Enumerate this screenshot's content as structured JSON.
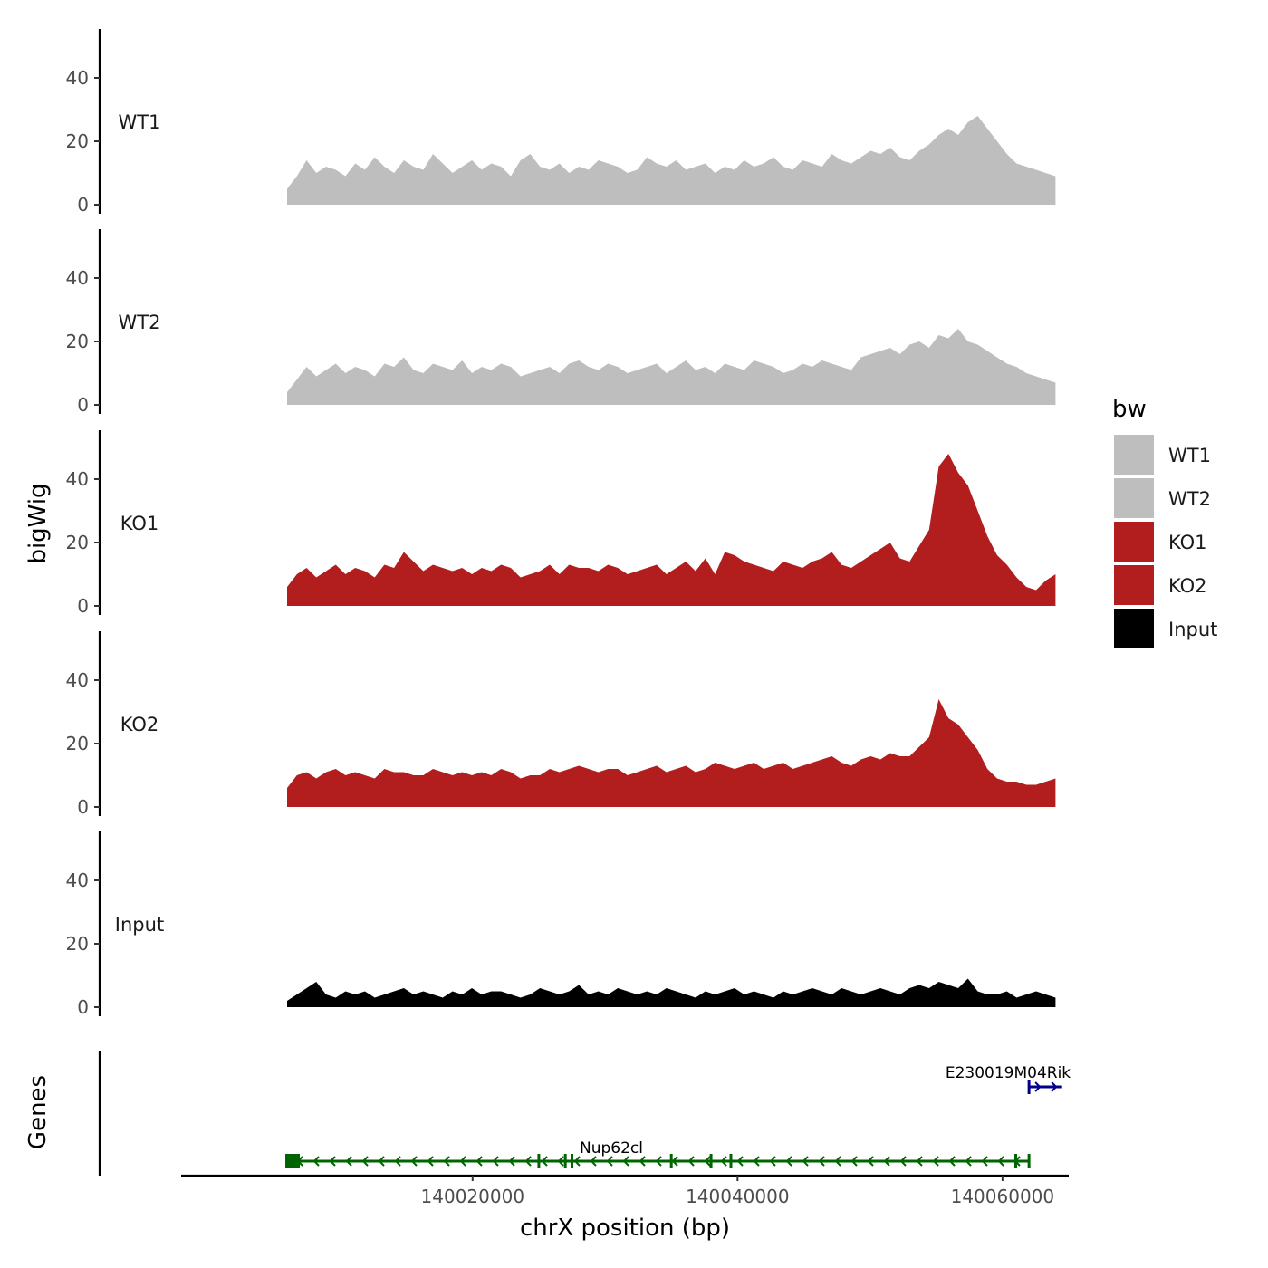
{
  "chart_data": {
    "type": "area",
    "description_free": true,
    "y_axis_title": "bigWig",
    "x_axis_title": "chrX position (bp)",
    "x_range": [
      139998000,
      140065000
    ],
    "x_ticks": [
      {
        "value": 140020000,
        "label": "140020000"
      },
      {
        "value": 140040000,
        "label": "140040000"
      },
      {
        "value": 140060000,
        "label": "140060000"
      }
    ],
    "y_range": [
      0,
      55
    ],
    "y_ticks": [
      {
        "value": 0,
        "label": "0"
      },
      {
        "value": 20,
        "label": "20"
      },
      {
        "value": 40,
        "label": "40"
      }
    ],
    "track_range": [
      140006000,
      140064000
    ],
    "series": [
      {
        "name": "WT1",
        "color": "#bebebe",
        "values": [
          5,
          9,
          14,
          10,
          12,
          11,
          9,
          13,
          11,
          15,
          12,
          10,
          14,
          12,
          11,
          16,
          13,
          10,
          12,
          14,
          11,
          13,
          12,
          9,
          14,
          16,
          12,
          11,
          13,
          10,
          12,
          11,
          14,
          13,
          12,
          10,
          11,
          15,
          13,
          12,
          14,
          11,
          12,
          13,
          10,
          12,
          11,
          14,
          12,
          13,
          15,
          12,
          11,
          14,
          13,
          12,
          16,
          14,
          13,
          15,
          17,
          16,
          18,
          15,
          14,
          17,
          19,
          22,
          24,
          22,
          26,
          28,
          24,
          20,
          16,
          13,
          12,
          11,
          10,
          9
        ]
      },
      {
        "name": "WT2",
        "color": "#bebebe",
        "values": [
          4,
          8,
          12,
          9,
          11,
          13,
          10,
          12,
          11,
          9,
          13,
          12,
          15,
          11,
          10,
          13,
          12,
          11,
          14,
          10,
          12,
          11,
          13,
          12,
          9,
          10,
          11,
          12,
          10,
          13,
          14,
          12,
          11,
          13,
          12,
          10,
          11,
          12,
          13,
          10,
          12,
          14,
          11,
          12,
          10,
          13,
          12,
          11,
          14,
          13,
          12,
          10,
          11,
          13,
          12,
          14,
          13,
          12,
          11,
          15,
          16,
          17,
          18,
          16,
          19,
          20,
          18,
          22,
          21,
          24,
          20,
          19,
          17,
          15,
          13,
          12,
          10,
          9,
          8,
          7
        ]
      },
      {
        "name": "KO1",
        "color": "#b21e1e",
        "values": [
          6,
          10,
          12,
          9,
          11,
          13,
          10,
          12,
          11,
          9,
          13,
          12,
          17,
          14,
          11,
          13,
          12,
          11,
          12,
          10,
          12,
          11,
          13,
          12,
          9,
          10,
          11,
          13,
          10,
          13,
          12,
          12,
          11,
          13,
          12,
          10,
          11,
          12,
          13,
          10,
          12,
          14,
          11,
          15,
          10,
          17,
          16,
          14,
          13,
          12,
          11,
          14,
          13,
          12,
          14,
          15,
          17,
          13,
          12,
          14,
          16,
          18,
          20,
          15,
          14,
          19,
          24,
          44,
          48,
          42,
          38,
          30,
          22,
          16,
          13,
          9,
          6,
          5,
          8,
          10
        ]
      },
      {
        "name": "KO2",
        "color": "#b21e1e",
        "values": [
          6,
          10,
          11,
          9,
          11,
          12,
          10,
          11,
          10,
          9,
          12,
          11,
          11,
          10,
          10,
          12,
          11,
          10,
          11,
          10,
          11,
          10,
          12,
          11,
          9,
          10,
          10,
          12,
          11,
          12,
          13,
          12,
          11,
          12,
          12,
          10,
          11,
          12,
          13,
          11,
          12,
          13,
          11,
          12,
          14,
          13,
          12,
          13,
          14,
          12,
          13,
          14,
          12,
          13,
          14,
          15,
          16,
          14,
          13,
          15,
          16,
          15,
          17,
          16,
          16,
          19,
          22,
          34,
          28,
          26,
          22,
          18,
          12,
          9,
          8,
          8,
          7,
          7,
          8,
          9
        ]
      },
      {
        "name": "Input",
        "color": "#000000",
        "values": [
          2,
          4,
          6,
          8,
          4,
          3,
          5,
          4,
          5,
          3,
          4,
          5,
          6,
          4,
          5,
          4,
          3,
          5,
          4,
          6,
          4,
          5,
          5,
          4,
          3,
          4,
          6,
          5,
          4,
          5,
          7,
          4,
          5,
          4,
          6,
          5,
          4,
          5,
          4,
          6,
          5,
          4,
          3,
          5,
          4,
          5,
          6,
          4,
          5,
          4,
          3,
          5,
          4,
          5,
          6,
          5,
          4,
          6,
          5,
          4,
          5,
          6,
          5,
          4,
          6,
          7,
          6,
          8,
          7,
          6,
          9,
          5,
          4,
          4,
          5,
          3,
          4,
          5,
          4,
          3
        ]
      }
    ],
    "legend": {
      "title": "bw",
      "position": "right",
      "entries": [
        {
          "label": "WT1",
          "color": "#bebebe"
        },
        {
          "label": "WT2",
          "color": "#bebebe"
        },
        {
          "label": "KO1",
          "color": "#b21e1e"
        },
        {
          "label": "KO2",
          "color": "#b21e1e"
        },
        {
          "label": "Input",
          "color": "#000000"
        }
      ]
    },
    "genes_track": {
      "title": "Genes",
      "genes": [
        {
          "name": "Nup62cl",
          "start": 140006000,
          "end": 140062000,
          "strand": "-",
          "color": "#006400",
          "exons": [
            140006000,
            140025000,
            140027000,
            140027500,
            140035000,
            140038000,
            140039500,
            140061000,
            140062000
          ]
        },
        {
          "name": "E230019M04Rik",
          "start": 140062000,
          "end": 140064500,
          "strand": "+",
          "color": "#00008b",
          "exons": [
            140062000
          ]
        }
      ]
    }
  }
}
